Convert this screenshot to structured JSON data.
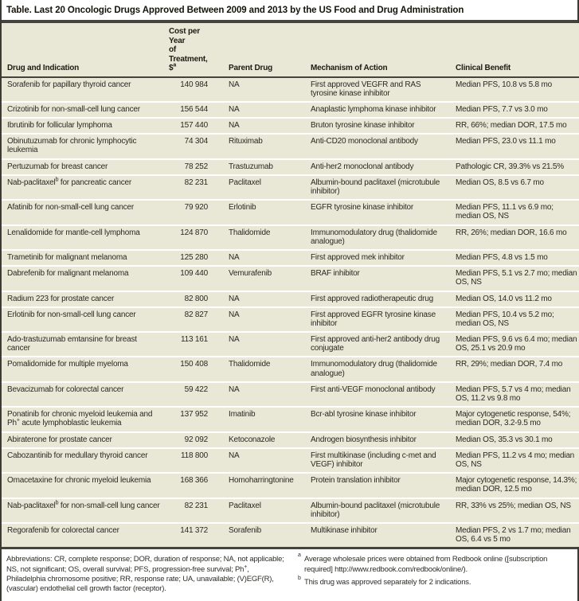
{
  "title": "Table. Last 20 Oncologic Drugs Approved Between 2009 and 2013 by the US Food and Drug Administration",
  "colors": {
    "row_background": "#e9e8d7",
    "rule": "#45443a",
    "text": "#2a2922",
    "page_background": "#ffffff"
  },
  "columns": {
    "drug": "Drug and Indication",
    "cost_line1": "Cost per Year",
    "cost_line2": "of Treatment,",
    "cost_line3": "$",
    "cost_sup": "a",
    "parent": "Parent Drug",
    "mechanism": "Mechanism of Action",
    "benefit": "Clinical Benefit"
  },
  "rows": [
    {
      "drug": "Sorafenib for papillary thyroid cancer",
      "drug_sup": "",
      "drug_rest": "",
      "cost": "140 984",
      "parent": "NA",
      "mechanism": "First approved VEGFR and RAS tyrosine kinase inhibitor",
      "benefit": "Median PFS, 10.8 vs 5.8 mo"
    },
    {
      "drug": "Crizotinib for non-small-cell lung cancer",
      "drug_sup": "",
      "drug_rest": "",
      "cost": "156 544",
      "parent": "NA",
      "mechanism": "Anaplastic lymphoma kinase inhibitor",
      "benefit": "Median PFS, 7.7 vs 3.0 mo"
    },
    {
      "drug": "Ibrutinib for follicular lymphoma",
      "drug_sup": "",
      "drug_rest": "",
      "cost": "157 440",
      "parent": "NA",
      "mechanism": "Bruton tyrosine kinase inhibitor",
      "benefit": "RR, 66%; median DOR, 17.5 mo"
    },
    {
      "drug": "Obinutuzumab for chronic lymphocytic leukemia",
      "drug_sup": "",
      "drug_rest": "",
      "cost": "74 304",
      "parent": "Rituximab",
      "mechanism": "Anti-CD20 monoclonal antibody",
      "benefit": "Median PFS, 23.0 vs 11.1 mo"
    },
    {
      "drug": "Pertuzumab for breast cancer",
      "drug_sup": "",
      "drug_rest": "",
      "cost": "78 252",
      "parent": "Trastuzumab",
      "mechanism": "Anti-her2 monoclonal antibody",
      "benefit": "Pathologic CR, 39.3% vs 21.5%"
    },
    {
      "drug": "Nab-paclitaxel",
      "drug_sup": "b",
      "drug_rest": " for pancreatic cancer",
      "cost": "82 231",
      "parent": "Paclitaxel",
      "mechanism": "Albumin-bound paclitaxel (microtubule inhibitor)",
      "benefit": "Median OS, 8.5 vs 6.7 mo"
    },
    {
      "drug": "Afatinib for non-small-cell lung cancer",
      "drug_sup": "",
      "drug_rest": "",
      "cost": "79 920",
      "parent": "Erlotinib",
      "mechanism": "EGFR tyrosine kinase inhibitor",
      "benefit": "Median PFS, 11.1 vs 6.9 mo; median OS, NS"
    },
    {
      "drug": "Lenalidomide for mantle-cell lymphoma",
      "drug_sup": "",
      "drug_rest": "",
      "cost": "124 870",
      "parent": "Thalidomide",
      "mechanism": "Immunomodulatory drug (thalidomide analogue)",
      "benefit": "RR, 26%; median DOR, 16.6 mo"
    },
    {
      "drug": "Trametinib for malignant melanoma",
      "drug_sup": "",
      "drug_rest": "",
      "cost": "125 280",
      "parent": "NA",
      "mechanism": "First approved mek inhibitor",
      "benefit": "Median PFS, 4.8 vs 1.5 mo"
    },
    {
      "drug": "Dabrefenib for malignant melanoma",
      "drug_sup": "",
      "drug_rest": "",
      "cost": "109 440",
      "parent": "Vemurafenib",
      "mechanism": "BRAF inhibitor",
      "benefit": "Median PFS, 5.1 vs 2.7 mo; median OS, NS"
    },
    {
      "drug": "Radium 223 for prostate cancer",
      "drug_sup": "",
      "drug_rest": "",
      "cost": "82 800",
      "parent": "NA",
      "mechanism": "First approved radiotherapeutic drug",
      "benefit": "Median OS, 14.0 vs 11.2 mo"
    },
    {
      "drug": "Erlotinib for non-small-cell lung cancer",
      "drug_sup": "",
      "drug_rest": "",
      "cost": "82 827",
      "parent": "NA",
      "mechanism": "First approved EGFR tyrosine kinase inhibitor",
      "benefit": "Median PFS, 10.4 vs 5.2 mo; median OS, NS"
    },
    {
      "drug": "Ado-trastuzumab emtansine for breast cancer",
      "drug_sup": "",
      "drug_rest": "",
      "cost": "113 161",
      "parent": "NA",
      "mechanism": "First approved anti-her2 antibody drug conjugate",
      "benefit": "Median PFS, 9.6 vs 6.4 mo; median OS, 25.1 vs 20.9 mo"
    },
    {
      "drug": "Pomalidomide for multiple myeloma",
      "drug_sup": "",
      "drug_rest": "",
      "cost": "150 408",
      "parent": "Thalidomide",
      "mechanism": "Immunomodulatory drug (thalidomide analogue)",
      "benefit": "RR, 29%; median DOR, 7.4 mo"
    },
    {
      "drug": "Bevacizumab for colorectal cancer",
      "drug_sup": "",
      "drug_rest": "",
      "cost": "59 422",
      "parent": "NA",
      "mechanism": "First anti-VEGF monoclonal antibody",
      "benefit": "Median PFS, 5.7 vs 4 mo; median OS, 11.2 vs 9.8 mo"
    },
    {
      "drug": "Ponatinib for chronic myeloid leukemia and Ph",
      "drug_sup": "+",
      "drug_rest": " acute lymphoblastic leukemia",
      "cost": "137 952",
      "parent": "Imatinib",
      "mechanism": "Bcr-abl tyrosine kinase inhibitor",
      "benefit": "Major cytogenetic response, 54%; median DOR, 3.2-9.5 mo"
    },
    {
      "drug": "Abiraterone for prostate cancer",
      "drug_sup": "",
      "drug_rest": "",
      "cost": "92 092",
      "parent": "Ketoconazole",
      "mechanism": "Androgen biosynthesis inhibitor",
      "benefit": "Median OS, 35.3 vs 30.1 mo"
    },
    {
      "drug": "Cabozantinib for medullary thyroid cancer",
      "drug_sup": "",
      "drug_rest": "",
      "cost": "118 800",
      "parent": "NA",
      "mechanism": "First multikinase (including c-met and VEGF) inhibitor",
      "benefit": "Median PFS, 11.2 vs 4 mo; median OS, NS"
    },
    {
      "drug": "Omacetaxine for chronic myeloid leukemia",
      "drug_sup": "",
      "drug_rest": "",
      "cost": "168 366",
      "parent": "Homoharringtonine",
      "mechanism": "Protein translation inhibitor",
      "benefit": "Major cytogenetic response, 14.3%; median DOR, 12.5 mo"
    },
    {
      "drug": "Nab-paclitaxel",
      "drug_sup": "b",
      "drug_rest": " for non-small-cell lung cancer",
      "cost": "82 231",
      "parent": "Paclitaxel",
      "mechanism": "Albumin-bound paclitaxel (microtubule inhibitor)",
      "benefit": "RR, 33% vs 25%; median OS, NS"
    },
    {
      "drug": "Regorafenib for colorectal cancer",
      "drug_sup": "",
      "drug_rest": "",
      "cost": "141 372",
      "parent": "Sorafenib",
      "mechanism": "Multikinase inhibitor",
      "benefit": "Median PFS, 2 vs 1.7 mo; median OS, 6.4 vs 5 mo"
    }
  ],
  "footnotes": {
    "abbreviations_pre": "Abbreviations: CR, complete response; DOR, duration of response; NA, not applicable; NS, not significant; OS, overall survival; PFS, progression-free survival; Ph",
    "abbreviations_sup": "+",
    "abbreviations_post": ", Philadelphia chromosome positive; RR, response rate; UA, unavailable; (V)EGF(R), (vascular) endothelial cell growth factor (receptor).",
    "note_a_marker": "a",
    "note_a": "Average wholesale prices were obtained from Redbook online ([subscription required] http://www.redbook.com/redbook/online/).",
    "note_b_marker": "b",
    "note_b": "This drug was approved separately for 2 indications."
  }
}
